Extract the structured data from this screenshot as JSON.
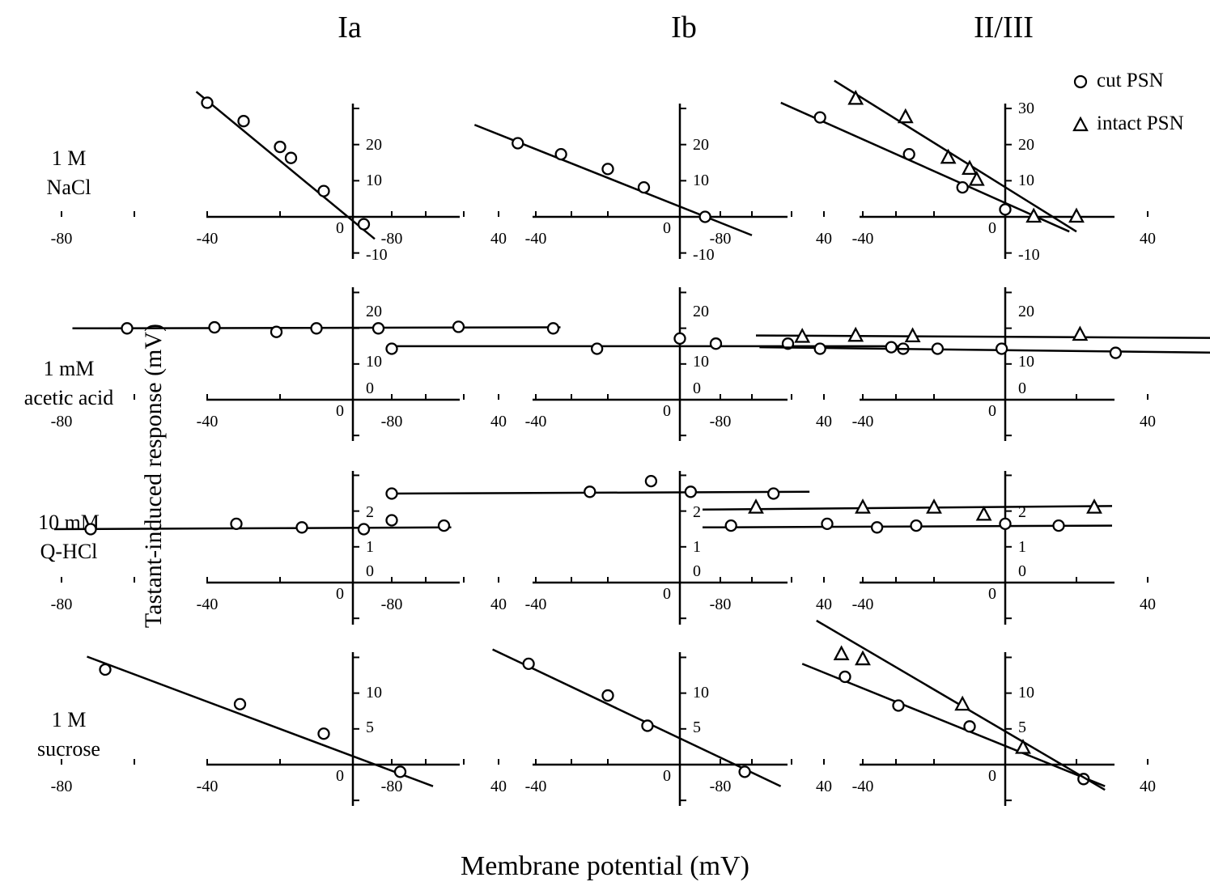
{
  "column_titles": [
    "Ia",
    "Ib",
    "II/III"
  ],
  "row_labels": [
    {
      "line1": "1 M",
      "line2": "NaCl"
    },
    {
      "line1": "1 mM",
      "line2": "acetic acid"
    },
    {
      "line1": "10 mM",
      "line2": "Q-HCl"
    },
    {
      "line1": "1 M",
      "line2": "sucrose"
    }
  ],
  "ylabel": "Tastant-induced response (mV)",
  "xlabel": "Membrane potential (mV)",
  "legend": [
    {
      "marker": "circle",
      "label": "cut PSN"
    },
    {
      "marker": "triangle",
      "label": "intact PSN"
    }
  ],
  "chart_data": [
    {
      "type": "scatter",
      "row": "1 M NaCl",
      "column": "Ia",
      "x_ticks": [
        "-80",
        "-40",
        "0",
        "40"
      ],
      "y_ticks": [
        "20",
        "10",
        "-10"
      ],
      "show_y_zero": false,
      "series": [
        {
          "name": "cut PSN",
          "marker": "circle",
          "x": [
            -40,
            -30,
            -20,
            -17,
            -8,
            3
          ],
          "y": [
            31,
            26,
            19,
            16,
            7,
            -2
          ],
          "fit": [
            [
              -43,
              34
            ],
            [
              6,
              -6
            ]
          ]
        }
      ]
    },
    {
      "type": "scatter",
      "row": "1 M NaCl",
      "column": "Ib",
      "x_ticks": [
        "-80",
        "-40",
        "0",
        "40"
      ],
      "y_ticks": [
        "20",
        "10",
        "-10"
      ],
      "show_y_zero": false,
      "series": [
        {
          "name": "cut PSN",
          "marker": "circle",
          "x": [
            -45,
            -33,
            -20,
            -10,
            7
          ],
          "y": [
            20,
            17,
            13,
            8,
            0
          ],
          "fit": [
            [
              -57,
              25
            ],
            [
              20,
              -5
            ]
          ]
        }
      ]
    },
    {
      "type": "scatter",
      "row": "1 M NaCl",
      "column": "II/III",
      "x_ticks": [
        "-80",
        "-40",
        "0",
        "40"
      ],
      "y_ticks": [
        "30",
        "20",
        "10",
        "-10"
      ],
      "show_y_zero": false,
      "series": [
        {
          "name": "cut PSN",
          "marker": "circle",
          "x": [
            -52,
            -27,
            -12,
            0
          ],
          "y": [
            27,
            17,
            8,
            2
          ],
          "fit": [
            [
              -63,
              31
            ],
            [
              18,
              -4
            ]
          ]
        },
        {
          "name": "intact PSN",
          "marker": "triangle",
          "x": [
            -42,
            -28,
            -16,
            -10,
            -8,
            8,
            20
          ],
          "y": [
            32,
            27,
            16,
            13,
            10,
            0,
            0
          ],
          "fit": [
            [
              -48,
              37
            ],
            [
              20,
              -4
            ]
          ]
        }
      ]
    },
    {
      "type": "scatter",
      "row": "1 mM acetic acid",
      "column": "Ia",
      "x_ticks": [
        "-80",
        "-40",
        "0",
        "40"
      ],
      "y_ticks": [
        "20",
        "10",
        "0"
      ],
      "show_y_zero": true,
      "series": [
        {
          "name": "cut PSN",
          "marker": "circle",
          "x": [
            -62,
            -38,
            -21,
            -10,
            7,
            29,
            55
          ],
          "y": [
            14,
            14.2,
            13.3,
            14,
            14,
            14.3,
            14
          ],
          "fit": [
            [
              -77,
              14
            ],
            [
              57,
              14.2
            ]
          ]
        }
      ]
    },
    {
      "type": "scatter",
      "row": "1 mM acetic acid",
      "column": "Ib",
      "x_ticks": [
        "-80",
        "-40",
        "0",
        "40"
      ],
      "y_ticks": [
        "20",
        "10",
        "0"
      ],
      "show_y_zero": true,
      "series": [
        {
          "name": "cut PSN",
          "marker": "circle",
          "x": [
            -80,
            -23,
            0,
            10,
            30,
            62
          ],
          "y": [
            10,
            10,
            12,
            11,
            11,
            10
          ],
          "fit": [
            [
              -80,
              10.5
            ],
            [
              62,
              10.5
            ]
          ]
        }
      ]
    },
    {
      "type": "scatter",
      "row": "1 mM acetic acid",
      "column": "II/III",
      "x_ticks": [
        "-80",
        "-40",
        "0",
        "40"
      ],
      "y_ticks": [
        "20",
        "10",
        "0"
      ],
      "show_y_zero": true,
      "series": [
        {
          "name": "cut PSN",
          "marker": "circle",
          "x": [
            -52,
            -32,
            -19,
            -1,
            31,
            62
          ],
          "y": [
            10,
            10.3,
            10,
            10,
            9.2,
            9.2
          ],
          "fit": [
            [
              -69,
              10.3
            ],
            [
              62,
              9.2
            ]
          ]
        },
        {
          "name": "intact PSN",
          "marker": "triangle",
          "x": [
            -57,
            -42,
            -26,
            21,
            63
          ],
          "y": [
            12.3,
            12.5,
            12.4,
            12.7,
            12.7
          ],
          "fit": [
            [
              -70,
              12.6
            ],
            [
              65,
              12.1
            ]
          ]
        }
      ]
    },
    {
      "type": "scatter",
      "row": "10 mM Q-HCl",
      "column": "Ia",
      "x_ticks": [
        "-80",
        "-40",
        "0",
        "40"
      ],
      "y_ticks": [
        "2",
        "1",
        "0"
      ],
      "show_y_zero": true,
      "series": [
        {
          "name": "cut PSN",
          "marker": "circle",
          "x": [
            -72,
            -32,
            -14,
            3,
            25
          ],
          "y": [
            1.5,
            1.65,
            1.55,
            1.5,
            1.6
          ],
          "fit": [
            [
              -82,
              1.5
            ],
            [
              27,
              1.55
            ]
          ]
        }
      ]
    },
    {
      "type": "scatter",
      "row": "10 mM Q-HCl",
      "column": "Ib",
      "x_ticks": [
        "-80",
        "-40",
        "0",
        "40"
      ],
      "y_ticks": [
        "2",
        "1",
        "0"
      ],
      "show_y_zero": true,
      "series": [
        {
          "name": "cut PSN",
          "marker": "circle",
          "x": [
            -80,
            -80,
            -25,
            -8,
            3,
            26
          ],
          "y": [
            2.5,
            1.75,
            2.55,
            2.85,
            2.55,
            2.5
          ],
          "fit": [
            [
              -80,
              2.5
            ],
            [
              36,
              2.55
            ]
          ]
        }
      ]
    },
    {
      "type": "scatter",
      "row": "10 mM Q-HCl",
      "column": "II/III",
      "x_ticks": [
        "-80",
        "-40",
        "0",
        "40"
      ],
      "y_ticks": [
        "2",
        "1",
        "0"
      ],
      "show_y_zero": true,
      "series": [
        {
          "name": "cut PSN",
          "marker": "circle",
          "x": [
            -77,
            -50,
            -36,
            -25,
            0,
            15
          ],
          "y": [
            1.6,
            1.65,
            1.55,
            1.6,
            1.65,
            1.6
          ],
          "fit": [
            [
              -85,
              1.55
            ],
            [
              30,
              1.6
            ]
          ]
        },
        {
          "name": "intact PSN",
          "marker": "triangle",
          "x": [
            -70,
            -40,
            -20,
            -6,
            25
          ],
          "y": [
            2.1,
            2.1,
            2.1,
            1.9,
            2.1
          ],
          "fit": [
            [
              -85,
              2.05
            ],
            [
              30,
              2.15
            ]
          ]
        }
      ]
    },
    {
      "type": "scatter",
      "row": "1 M sucrose",
      "column": "Ia",
      "x_ticks": [
        "-80",
        "-40",
        "0",
        "40"
      ],
      "y_ticks": [
        "10",
        "5"
      ],
      "show_y_zero": false,
      "series": [
        {
          "name": "cut PSN",
          "marker": "circle",
          "x": [
            -68,
            -31,
            -8,
            13
          ],
          "y": [
            13.2,
            8.4,
            4.3,
            -1
          ],
          "fit": [
            [
              -73,
              15
            ],
            [
              22,
              -3
            ]
          ]
        }
      ]
    },
    {
      "type": "scatter",
      "row": "1 M sucrose",
      "column": "Ib",
      "x_ticks": [
        "-80",
        "-40",
        "0",
        "40"
      ],
      "y_ticks": [
        "10",
        "5"
      ],
      "show_y_zero": false,
      "series": [
        {
          "name": "cut PSN",
          "marker": "circle",
          "x": [
            -42,
            -20,
            -9,
            18
          ],
          "y": [
            14,
            9.6,
            5.4,
            -1
          ],
          "fit": [
            [
              -52,
              16
            ],
            [
              28,
              -3
            ]
          ]
        }
      ]
    },
    {
      "type": "scatter",
      "row": "1 M sucrose",
      "column": "II/III",
      "x_ticks": [
        "-80",
        "-40",
        "0",
        "40"
      ],
      "y_ticks": [
        "10",
        "5"
      ],
      "show_y_zero": false,
      "series": [
        {
          "name": "cut PSN",
          "marker": "circle",
          "x": [
            -45,
            -30,
            -10,
            22
          ],
          "y": [
            12.2,
            8.2,
            5.3,
            -2
          ],
          "fit": [
            [
              -57,
              14
            ],
            [
              28,
              -3
            ]
          ]
        },
        {
          "name": "intact PSN",
          "marker": "triangle",
          "x": [
            -46,
            -40,
            -12,
            5
          ],
          "y": [
            15.3,
            14.6,
            8.3,
            2.3
          ],
          "fit": [
            [
              -53,
              20
            ],
            [
              28,
              -3.5
            ]
          ]
        }
      ]
    }
  ]
}
